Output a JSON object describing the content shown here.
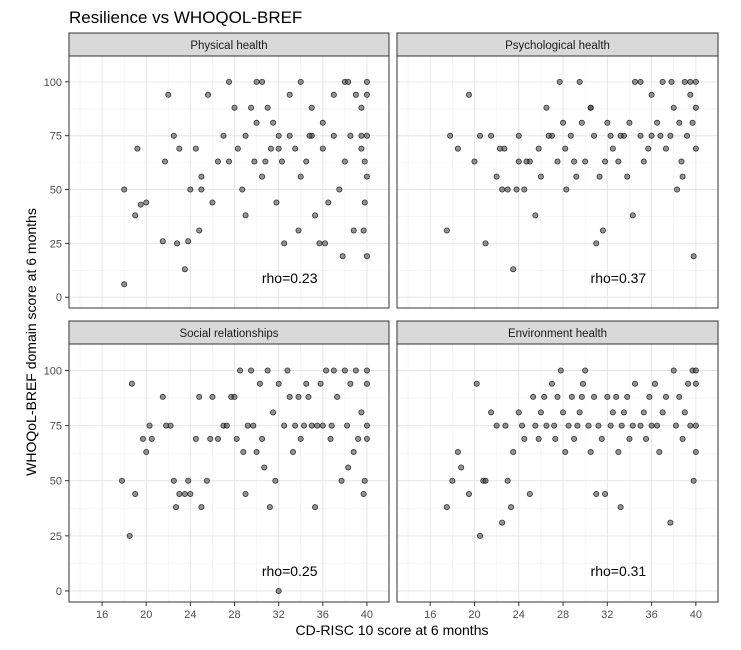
{
  "chart_data": {
    "type": "scatter",
    "title": "Resilience vs WHOQOL-BREF",
    "xlabel": "CD-RISC 10 score at 6 months",
    "ylabel": "WHOQoL-BREF domain score at 6 months",
    "xlim": [
      13,
      42
    ],
    "ylim": [
      -5,
      112
    ],
    "xticks": [
      16,
      20,
      24,
      28,
      32,
      36,
      40
    ],
    "yticks": [
      0,
      25,
      50,
      75,
      100
    ],
    "grid": true,
    "legend": "none",
    "point_color": "#4d4d4d",
    "panels": [
      {
        "name": "Physical health",
        "annotation": "rho=0.23",
        "annotation_pos": [
          33,
          9
        ],
        "points": [
          [
            18,
            6
          ],
          [
            18,
            50
          ],
          [
            19,
            38
          ],
          [
            19.2,
            69
          ],
          [
            19.5,
            43
          ],
          [
            20,
            44
          ],
          [
            21.5,
            26
          ],
          [
            21.7,
            63
          ],
          [
            22,
            94
          ],
          [
            22.5,
            75
          ],
          [
            22.8,
            25
          ],
          [
            23,
            69
          ],
          [
            23.5,
            13
          ],
          [
            23.8,
            26
          ],
          [
            24,
            50
          ],
          [
            24.5,
            69
          ],
          [
            24.8,
            31
          ],
          [
            25,
            50
          ],
          [
            25,
            56
          ],
          [
            25.6,
            94
          ],
          [
            26,
            44
          ],
          [
            26.5,
            63
          ],
          [
            27,
            75
          ],
          [
            27.5,
            100
          ],
          [
            27.5,
            63
          ],
          [
            28,
            88
          ],
          [
            28.3,
            69
          ],
          [
            28.7,
            50
          ],
          [
            29,
            38
          ],
          [
            29,
            75
          ],
          [
            29.5,
            88
          ],
          [
            29.8,
            63
          ],
          [
            30,
            100
          ],
          [
            30,
            81
          ],
          [
            30.5,
            56
          ],
          [
            30.8,
            63
          ],
          [
            31,
            88
          ],
          [
            31.3,
            69
          ],
          [
            31.8,
            44
          ],
          [
            32,
            69
          ],
          [
            32,
            75
          ],
          [
            32.3,
            63
          ],
          [
            32.5,
            25
          ],
          [
            33,
            75
          ],
          [
            33,
            94
          ],
          [
            33.5,
            69
          ],
          [
            33.8,
            31
          ],
          [
            34,
            56
          ],
          [
            34,
            100
          ],
          [
            34.5,
            63
          ],
          [
            35,
            75
          ],
          [
            35,
            88
          ],
          [
            35.3,
            38
          ],
          [
            35.7,
            25
          ],
          [
            36,
            69
          ],
          [
            36,
            81
          ],
          [
            36.5,
            44
          ],
          [
            37,
            75
          ],
          [
            37,
            94
          ],
          [
            37.5,
            50
          ],
          [
            37.8,
            19
          ],
          [
            38,
            63
          ],
          [
            38,
            100
          ],
          [
            38.5,
            75
          ],
          [
            38.8,
            31
          ],
          [
            39,
            94
          ],
          [
            39.5,
            88
          ],
          [
            39.5,
            75
          ],
          [
            39.8,
            63
          ],
          [
            39.8,
            44
          ],
          [
            40,
            100
          ],
          [
            40,
            94
          ],
          [
            40,
            75
          ],
          [
            40,
            56
          ],
          [
            39.7,
            31
          ],
          [
            40,
            19
          ],
          [
            39.5,
            69
          ],
          [
            38.3,
            100
          ],
          [
            36.2,
            25
          ],
          [
            34.8,
            75
          ],
          [
            31.5,
            81
          ],
          [
            30.5,
            100
          ]
        ]
      },
      {
        "name": "Psychological health",
        "annotation": "rho=0.37",
        "annotation_pos": [
          33,
          9
        ],
        "points": [
          [
            17.5,
            31
          ],
          [
            17.8,
            75
          ],
          [
            18.5,
            69
          ],
          [
            19.5,
            94
          ],
          [
            20,
            63
          ],
          [
            20.5,
            75
          ],
          [
            21,
            25
          ],
          [
            21.5,
            75
          ],
          [
            22,
            56
          ],
          [
            22.5,
            50
          ],
          [
            22.7,
            69
          ],
          [
            23,
            50
          ],
          [
            23.5,
            13
          ],
          [
            23.8,
            50
          ],
          [
            24,
            75
          ],
          [
            24,
            63
          ],
          [
            24.5,
            50
          ],
          [
            25,
            63
          ],
          [
            25.5,
            38
          ],
          [
            25.8,
            69
          ],
          [
            26,
            56
          ],
          [
            26.5,
            88
          ],
          [
            27,
            75
          ],
          [
            27.5,
            63
          ],
          [
            27.7,
            100
          ],
          [
            28,
            81
          ],
          [
            28.3,
            50
          ],
          [
            28.7,
            75
          ],
          [
            29,
            63
          ],
          [
            29.5,
            100
          ],
          [
            29.7,
            81
          ],
          [
            30,
            63
          ],
          [
            30.5,
            88
          ],
          [
            30.8,
            75
          ],
          [
            31,
            25
          ],
          [
            31.3,
            56
          ],
          [
            31.6,
            31
          ],
          [
            32,
            81
          ],
          [
            32.3,
            75
          ],
          [
            32.5,
            69
          ],
          [
            33,
            63
          ],
          [
            33.5,
            75
          ],
          [
            33.8,
            56
          ],
          [
            34,
            81
          ],
          [
            34.3,
            38
          ],
          [
            34.5,
            100
          ],
          [
            35,
            75
          ],
          [
            35,
            100
          ],
          [
            35.3,
            63
          ],
          [
            35.7,
            69
          ],
          [
            36,
            75
          ],
          [
            36,
            94
          ],
          [
            36.5,
            81
          ],
          [
            37,
            100
          ],
          [
            37.3,
            69
          ],
          [
            37.7,
            75
          ],
          [
            38,
            88
          ],
          [
            38.3,
            50
          ],
          [
            38.7,
            63
          ],
          [
            39,
            100
          ],
          [
            39.2,
            75
          ],
          [
            39.5,
            94
          ],
          [
            39.7,
            81
          ],
          [
            40,
            88
          ],
          [
            40,
            100
          ],
          [
            40,
            69
          ],
          [
            39.8,
            19
          ],
          [
            38.5,
            81
          ],
          [
            36.8,
            75
          ],
          [
            37.8,
            100
          ],
          [
            39.5,
            100
          ],
          [
            38.8,
            56
          ],
          [
            33.2,
            75
          ],
          [
            31.8,
            63
          ],
          [
            30.5,
            88
          ],
          [
            29.2,
            56
          ],
          [
            28.2,
            69
          ],
          [
            26.7,
            75
          ],
          [
            24.7,
            63
          ],
          [
            22.3,
            69
          ]
        ]
      },
      {
        "name": "Social relationships",
        "annotation": "rho=0.25",
        "annotation_pos": [
          33,
          9
        ],
        "points": [
          [
            17.8,
            50
          ],
          [
            18.5,
            25
          ],
          [
            18.7,
            94
          ],
          [
            19,
            44
          ],
          [
            19.7,
            69
          ],
          [
            20,
            63
          ],
          [
            20.3,
            75
          ],
          [
            20.5,
            69
          ],
          [
            21.5,
            88
          ],
          [
            21.8,
            75
          ],
          [
            22.2,
            75
          ],
          [
            22.5,
            50
          ],
          [
            22.7,
            38
          ],
          [
            23,
            44
          ],
          [
            23.5,
            44
          ],
          [
            23.8,
            50
          ],
          [
            24,
            44
          ],
          [
            24.5,
            69
          ],
          [
            24.8,
            88
          ],
          [
            25,
            38
          ],
          [
            25.5,
            50
          ],
          [
            25.8,
            69
          ],
          [
            26,
            88
          ],
          [
            26.5,
            69
          ],
          [
            27,
            75
          ],
          [
            27.3,
            75
          ],
          [
            27.7,
            88
          ],
          [
            28,
            88
          ],
          [
            28.2,
            69
          ],
          [
            28.5,
            100
          ],
          [
            28.8,
            63
          ],
          [
            29,
            44
          ],
          [
            29.2,
            75
          ],
          [
            29.5,
            100
          ],
          [
            29.7,
            75
          ],
          [
            30,
            63
          ],
          [
            30.3,
            94
          ],
          [
            30.5,
            69
          ],
          [
            31,
            100
          ],
          [
            31.2,
            38
          ],
          [
            31.5,
            81
          ],
          [
            31.7,
            50
          ],
          [
            32,
            94
          ],
          [
            32,
            0
          ],
          [
            32.5,
            75
          ],
          [
            32.8,
            100
          ],
          [
            33,
            88
          ],
          [
            33.3,
            63
          ],
          [
            33.5,
            75
          ],
          [
            33.8,
            88
          ],
          [
            34,
            69
          ],
          [
            34.3,
            75
          ],
          [
            34.5,
            94
          ],
          [
            35,
            75
          ],
          [
            35.3,
            38
          ],
          [
            35.5,
            75
          ],
          [
            35.8,
            94
          ],
          [
            36,
            75
          ],
          [
            36.3,
            100
          ],
          [
            36.7,
            69
          ],
          [
            37,
            100
          ],
          [
            37.3,
            88
          ],
          [
            37.7,
            50
          ],
          [
            38,
            100
          ],
          [
            38.2,
            75
          ],
          [
            38.5,
            94
          ],
          [
            38.8,
            63
          ],
          [
            39,
            100
          ],
          [
            39.2,
            69
          ],
          [
            39.5,
            81
          ],
          [
            39.7,
            44
          ],
          [
            40,
            100
          ],
          [
            40,
            94
          ],
          [
            40,
            75
          ],
          [
            40,
            69
          ],
          [
            39.8,
            50
          ],
          [
            38.3,
            56
          ],
          [
            36.8,
            75
          ],
          [
            34.7,
            88
          ],
          [
            30.7,
            56
          ]
        ]
      },
      {
        "name": "Environment health",
        "annotation": "rho=0.31",
        "annotation_pos": [
          33,
          9
        ],
        "points": [
          [
            17.5,
            38
          ],
          [
            18,
            50
          ],
          [
            18.5,
            63
          ],
          [
            18.8,
            56
          ],
          [
            19.5,
            44
          ],
          [
            20.2,
            94
          ],
          [
            20.5,
            25
          ],
          [
            20.8,
            50
          ],
          [
            21,
            50
          ],
          [
            21.5,
            81
          ],
          [
            22,
            75
          ],
          [
            22.5,
            31
          ],
          [
            22.8,
            75
          ],
          [
            23,
            50
          ],
          [
            23.3,
            38
          ],
          [
            23.5,
            63
          ],
          [
            24,
            81
          ],
          [
            24.3,
            75
          ],
          [
            24.5,
            69
          ],
          [
            25,
            44
          ],
          [
            25.3,
            88
          ],
          [
            25.5,
            75
          ],
          [
            25.8,
            69
          ],
          [
            26,
            81
          ],
          [
            26.3,
            88
          ],
          [
            26.5,
            75
          ],
          [
            27,
            94
          ],
          [
            27.3,
            69
          ],
          [
            27.5,
            88
          ],
          [
            27.8,
            100
          ],
          [
            28,
            81
          ],
          [
            28.2,
            63
          ],
          [
            28.5,
            75
          ],
          [
            28.8,
            88
          ],
          [
            29,
            69
          ],
          [
            29.3,
            75
          ],
          [
            29.5,
            81
          ],
          [
            29.7,
            88
          ],
          [
            30,
            100
          ],
          [
            30.3,
            75
          ],
          [
            30.5,
            63
          ],
          [
            30.8,
            88
          ],
          [
            31,
            44
          ],
          [
            31.2,
            75
          ],
          [
            31.5,
            69
          ],
          [
            31.8,
            44
          ],
          [
            32,
            88
          ],
          [
            32.3,
            75
          ],
          [
            32.5,
            81
          ],
          [
            32.8,
            88
          ],
          [
            33,
            63
          ],
          [
            33.3,
            75
          ],
          [
            33.5,
            81
          ],
          [
            33.8,
            88
          ],
          [
            34,
            69
          ],
          [
            34.3,
            75
          ],
          [
            34.5,
            94
          ],
          [
            35,
            75
          ],
          [
            35.3,
            81
          ],
          [
            35.5,
            69
          ],
          [
            35.8,
            88
          ],
          [
            36,
            75
          ],
          [
            36.3,
            94
          ],
          [
            36.7,
            63
          ],
          [
            37,
            81
          ],
          [
            37.3,
            88
          ],
          [
            37.7,
            31
          ],
          [
            38,
            100
          ],
          [
            38.2,
            75
          ],
          [
            38.5,
            88
          ],
          [
            38.8,
            69
          ],
          [
            39,
            81
          ],
          [
            39.3,
            94
          ],
          [
            39.5,
            75
          ],
          [
            39.7,
            100
          ],
          [
            40,
            100
          ],
          [
            40,
            94
          ],
          [
            40,
            75
          ],
          [
            40,
            63
          ],
          [
            39.8,
            50
          ],
          [
            33.2,
            38
          ],
          [
            36.5,
            75
          ],
          [
            29.8,
            94
          ],
          [
            27.2,
            75
          ]
        ]
      }
    ]
  }
}
